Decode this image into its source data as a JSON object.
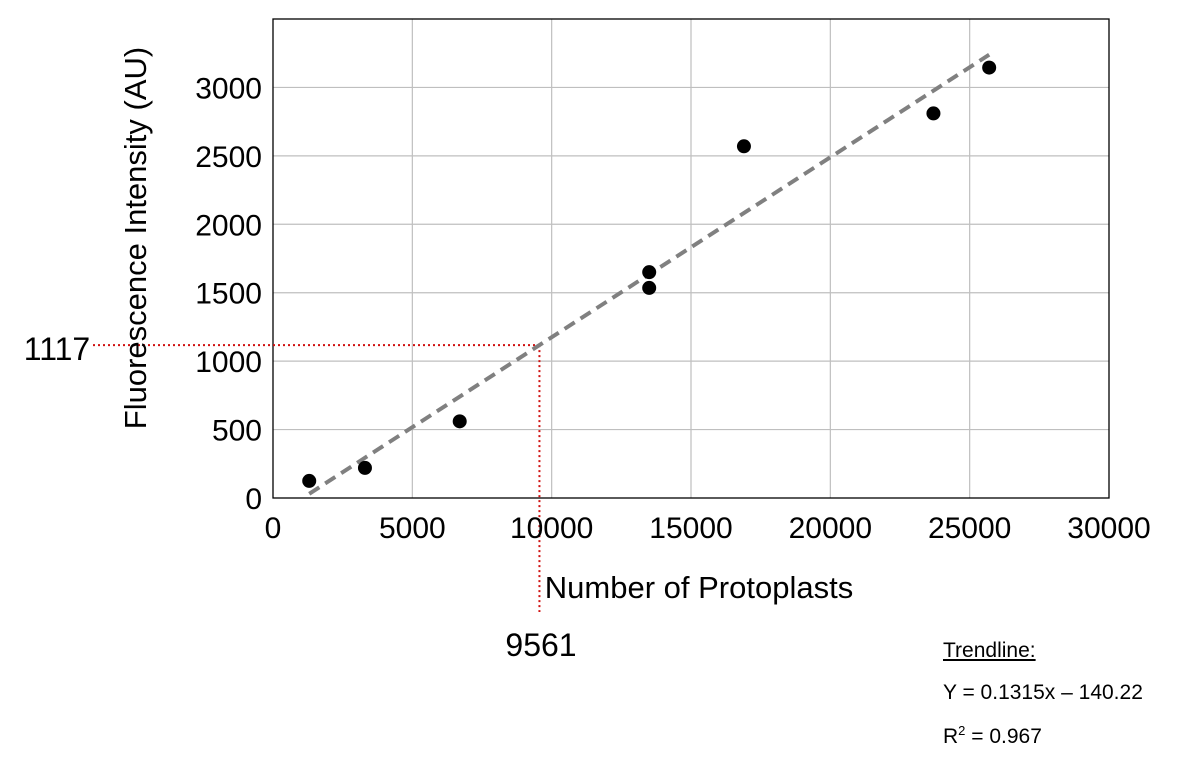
{
  "chart_data": {
    "type": "scatter",
    "xlabel": "Number of Protoplasts",
    "ylabel": "Fluorescence Intensity (AU)",
    "xlim": [
      0,
      30000
    ],
    "ylim": [
      0,
      3500
    ],
    "x_ticks": [
      0,
      5000,
      10000,
      15000,
      20000,
      25000,
      30000
    ],
    "y_ticks": [
      0,
      500,
      1000,
      1500,
      2000,
      2500,
      3000
    ],
    "x_tick_labels": [
      "0",
      "5000",
      "10000",
      "15000",
      "20000",
      "25000",
      "30000"
    ],
    "y_tick_labels": [
      "0",
      "500",
      "1000",
      "1500",
      "2000",
      "2500",
      "3000"
    ],
    "grid": true,
    "points": [
      {
        "x": 1300,
        "y": 125
      },
      {
        "x": 3300,
        "y": 220
      },
      {
        "x": 6700,
        "y": 560
      },
      {
        "x": 13500,
        "y": 1650
      },
      {
        "x": 13500,
        "y": 1535
      },
      {
        "x": 16900,
        "y": 2570
      },
      {
        "x": 23700,
        "y": 2810
      },
      {
        "x": 25700,
        "y": 3145
      }
    ],
    "point_color": "#000000",
    "trendline": {
      "slope": 0.1315,
      "intercept": -140.22,
      "x_range": [
        1300,
        25700
      ],
      "style": "dashed",
      "color": "#808080"
    },
    "annotation": {
      "x": 9561,
      "y": 1117,
      "x_label": "9561",
      "y_label": "1117",
      "color": "#d01010",
      "style": "dotted"
    },
    "trend_text": {
      "heading": "Trendline:",
      "equation": "Y = 0.1315x – 140.22",
      "r_squared_prefix": "R",
      "r_squared_sup": "2",
      "r_squared_value": " = 0.967"
    }
  }
}
